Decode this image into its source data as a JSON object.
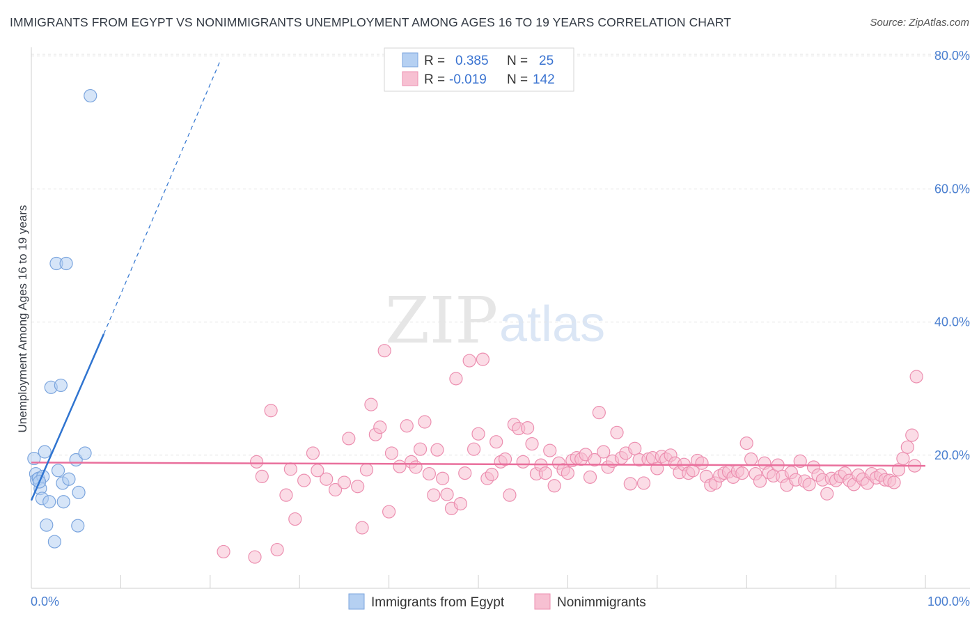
{
  "title": "IMMIGRANTS FROM EGYPT VS NONIMMIGRANTS UNEMPLOYMENT AMONG AGES 16 TO 19 YEARS CORRELATION CHART",
  "source": "Source: ZipAtlas.com",
  "watermark": {
    "zip": "ZIP",
    "atlas": "atlas"
  },
  "colors": {
    "egypt_fill": "#b5d0f2",
    "egypt_stroke": "#7ba5de",
    "egypt_line": "#2f74d0",
    "non_fill": "#f7c0d2",
    "non_stroke": "#ec8fb0",
    "non_line": "#e96f9c",
    "tick_text": "#4a7fd0"
  },
  "legend": {
    "row1": {
      "r_label": "R =",
      "r_value": "0.385",
      "n_label": "N =",
      "n_value": "25"
    },
    "row2": {
      "r_label": "R =",
      "r_value": "-0.019",
      "n_label": "N =",
      "n_value": "142"
    }
  },
  "bottom_legend": {
    "egypt": "Immigrants from Egypt",
    "non": "Nonimmigrants"
  },
  "chart_data": {
    "type": "scatter",
    "title": "IMMIGRANTS FROM EGYPT VS NONIMMIGRANTS UNEMPLOYMENT AMONG AGES 16 TO 19 YEARS CORRELATION CHART",
    "xlabel": "",
    "ylabel": "Unemployment Among Ages 16 to 19 years",
    "xlim": [
      0,
      100
    ],
    "ylim": [
      0,
      83
    ],
    "x_tick_labels": [
      "0.0%",
      "100.0%"
    ],
    "y_ticks": [
      20,
      40,
      60,
      80
    ],
    "y_tick_labels": [
      "20.0%",
      "40.0%",
      "60.0%",
      "80.0%"
    ],
    "series": [
      {
        "name": "Immigrants from Egypt",
        "r": 0.385,
        "n": 25,
        "trend": {
          "x0": 0,
          "y0": 13.2,
          "x1": 8.1,
          "y1": 38.2,
          "dash_to_x": 21.2,
          "dash_to_y": 79.5
        },
        "points": [
          [
            0.3,
            19.5
          ],
          [
            0.5,
            17.2
          ],
          [
            0.6,
            16.3
          ],
          [
            0.8,
            16.5
          ],
          [
            1.0,
            15.0
          ],
          [
            1.2,
            13.5
          ],
          [
            1.3,
            16.8
          ],
          [
            1.5,
            20.5
          ],
          [
            1.7,
            9.5
          ],
          [
            2.0,
            13.0
          ],
          [
            2.2,
            30.2
          ],
          [
            2.6,
            7.0
          ],
          [
            2.8,
            48.8
          ],
          [
            3.0,
            17.7
          ],
          [
            3.3,
            30.5
          ],
          [
            3.5,
            15.8
          ],
          [
            3.6,
            13.0
          ],
          [
            3.9,
            48.8
          ],
          [
            4.2,
            16.4
          ],
          [
            5.0,
            19.3
          ],
          [
            5.3,
            14.4
          ],
          [
            5.2,
            9.4
          ],
          [
            6.0,
            20.3
          ],
          [
            6.6,
            74.0
          ],
          [
            0.9,
            16.0
          ]
        ]
      },
      {
        "name": "Nonimmigrants",
        "r": -0.019,
        "n": 142,
        "trend": {
          "x0": 0,
          "y0": 18.9,
          "x1": 100,
          "y1": 18.4
        },
        "points": [
          [
            21.5,
            5.5
          ],
          [
            25.0,
            4.7
          ],
          [
            27.5,
            5.8
          ],
          [
            25.2,
            19.0
          ],
          [
            25.8,
            16.8
          ],
          [
            26.8,
            26.7
          ],
          [
            28.5,
            14.0
          ],
          [
            29.0,
            17.9
          ],
          [
            29.5,
            10.4
          ],
          [
            30.5,
            16.2
          ],
          [
            32.0,
            17.7
          ],
          [
            31.5,
            20.3
          ],
          [
            33.0,
            16.4
          ],
          [
            34.0,
            14.8
          ],
          [
            35.0,
            15.9
          ],
          [
            35.5,
            22.5
          ],
          [
            36.5,
            15.3
          ],
          [
            37.0,
            9.1
          ],
          [
            37.5,
            17.8
          ],
          [
            38.0,
            27.6
          ],
          [
            38.5,
            23.1
          ],
          [
            39.0,
            24.2
          ],
          [
            39.5,
            35.7
          ],
          [
            40.0,
            11.5
          ],
          [
            40.3,
            20.3
          ],
          [
            41.2,
            18.3
          ],
          [
            42.0,
            24.4
          ],
          [
            42.5,
            19.0
          ],
          [
            43.0,
            18.2
          ],
          [
            43.5,
            20.9
          ],
          [
            44.0,
            25.0
          ],
          [
            44.5,
            17.2
          ],
          [
            45.0,
            14.0
          ],
          [
            45.4,
            20.8
          ],
          [
            46.0,
            16.5
          ],
          [
            46.5,
            14.1
          ],
          [
            47.0,
            12.0
          ],
          [
            47.5,
            31.5
          ],
          [
            48.0,
            12.7
          ],
          [
            48.5,
            17.3
          ],
          [
            49.0,
            34.2
          ],
          [
            49.5,
            20.9
          ],
          [
            50.0,
            23.2
          ],
          [
            50.5,
            34.4
          ],
          [
            51.0,
            16.5
          ],
          [
            51.5,
            17.1
          ],
          [
            52.0,
            22.0
          ],
          [
            52.5,
            19.0
          ],
          [
            53.0,
            19.4
          ],
          [
            53.5,
            14.0
          ],
          [
            54.0,
            24.6
          ],
          [
            54.5,
            24.0
          ],
          [
            55.0,
            19.0
          ],
          [
            55.5,
            24.1
          ],
          [
            56.0,
            21.7
          ],
          [
            56.5,
            17.2
          ],
          [
            57.0,
            18.5
          ],
          [
            57.5,
            17.3
          ],
          [
            58.0,
            20.7
          ],
          [
            58.5,
            15.4
          ],
          [
            59.0,
            18.8
          ],
          [
            59.5,
            17.8
          ],
          [
            60.0,
            17.3
          ],
          [
            60.5,
            19.2
          ],
          [
            61.0,
            19.6
          ],
          [
            61.5,
            19.4
          ],
          [
            62.0,
            20.1
          ],
          [
            62.5,
            16.7
          ],
          [
            63.0,
            19.3
          ],
          [
            63.5,
            26.4
          ],
          [
            64.0,
            20.5
          ],
          [
            64.5,
            18.2
          ],
          [
            65.0,
            19.1
          ],
          [
            65.5,
            23.4
          ],
          [
            66.0,
            19.6
          ],
          [
            66.5,
            20.3
          ],
          [
            67.0,
            15.7
          ],
          [
            67.5,
            21.0
          ],
          [
            68.0,
            19.3
          ],
          [
            68.5,
            15.8
          ],
          [
            69.0,
            19.4
          ],
          [
            69.5,
            19.6
          ],
          [
            70.0,
            18.0
          ],
          [
            70.5,
            19.8
          ],
          [
            71.0,
            19.4
          ],
          [
            71.5,
            20.0
          ],
          [
            72.0,
            18.8
          ],
          [
            72.5,
            17.4
          ],
          [
            73.0,
            18.6
          ],
          [
            73.5,
            17.3
          ],
          [
            74.0,
            17.7
          ],
          [
            74.5,
            19.2
          ],
          [
            75.0,
            18.8
          ],
          [
            75.5,
            16.8
          ],
          [
            76.0,
            15.5
          ],
          [
            76.5,
            15.8
          ],
          [
            77.0,
            16.9
          ],
          [
            77.5,
            17.3
          ],
          [
            78.0,
            17.5
          ],
          [
            78.5,
            16.7
          ],
          [
            79.0,
            17.6
          ],
          [
            79.5,
            17.3
          ],
          [
            80.0,
            21.8
          ],
          [
            80.5,
            19.4
          ],
          [
            81.0,
            17.2
          ],
          [
            81.5,
            16.1
          ],
          [
            82.0,
            18.8
          ],
          [
            82.5,
            17.4
          ],
          [
            83.0,
            16.9
          ],
          [
            83.5,
            18.5
          ],
          [
            84.0,
            16.8
          ],
          [
            84.5,
            15.5
          ],
          [
            85.0,
            17.4
          ],
          [
            85.5,
            16.3
          ],
          [
            86.0,
            19.1
          ],
          [
            86.5,
            16.1
          ],
          [
            87.0,
            15.6
          ],
          [
            87.5,
            18.2
          ],
          [
            88.0,
            17.0
          ],
          [
            88.5,
            16.3
          ],
          [
            89.0,
            14.2
          ],
          [
            89.5,
            16.5
          ],
          [
            90.0,
            16.2
          ],
          [
            90.5,
            16.8
          ],
          [
            91.0,
            17.3
          ],
          [
            91.5,
            16.2
          ],
          [
            92.0,
            15.6
          ],
          [
            92.5,
            17.0
          ],
          [
            93.0,
            16.4
          ],
          [
            93.5,
            15.8
          ],
          [
            94.0,
            17.2
          ],
          [
            94.5,
            16.6
          ],
          [
            95.0,
            17.0
          ],
          [
            95.5,
            16.3
          ],
          [
            96.0,
            16.2
          ],
          [
            96.5,
            15.9
          ],
          [
            97.0,
            17.8
          ],
          [
            97.5,
            19.5
          ],
          [
            98.0,
            21.2
          ],
          [
            98.5,
            23.0
          ],
          [
            99.0,
            31.8
          ],
          [
            98.8,
            18.4
          ]
        ]
      }
    ]
  }
}
